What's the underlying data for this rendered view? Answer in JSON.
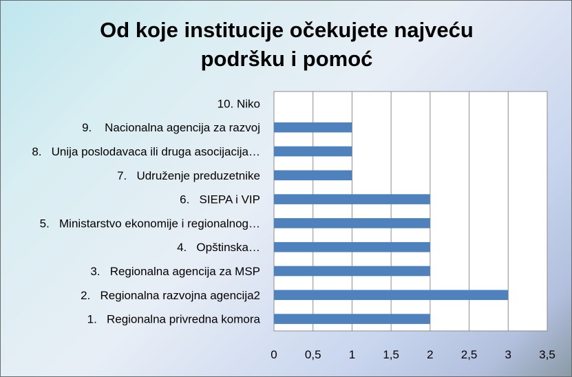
{
  "chart_data": {
    "type": "bar",
    "orientation": "horizontal",
    "title_lines": [
      "Od koje institucije očekujete najveću",
      "podršku i pomoć"
    ],
    "categories": [
      "1.   Regionalna privredna komora",
      "2.   Regionalna razvojna agencija2",
      "3.   Regionalna agencija za MSP",
      "4.   Opštinska…",
      "5.   Ministarstvo ekonomije i regionalnog…",
      "6.   SIEPA i VIP",
      "7.   Udruženje preduzetnike",
      "8.   Unija poslodavaca ili druga asocijacija…",
      "9.    Nacionalna agencija za razvoj",
      "10. Niko"
    ],
    "values": [
      2,
      3,
      2,
      2,
      2,
      2,
      1,
      1,
      1,
      0
    ],
    "xlim": [
      0,
      3.5
    ],
    "xticks": [
      "0",
      "0,5",
      "1",
      "1,5",
      "2",
      "2,5",
      "3",
      "3,5"
    ],
    "grid": true,
    "legend": "none",
    "bar_color": "#4f81bd",
    "xlabel": "",
    "ylabel": ""
  }
}
